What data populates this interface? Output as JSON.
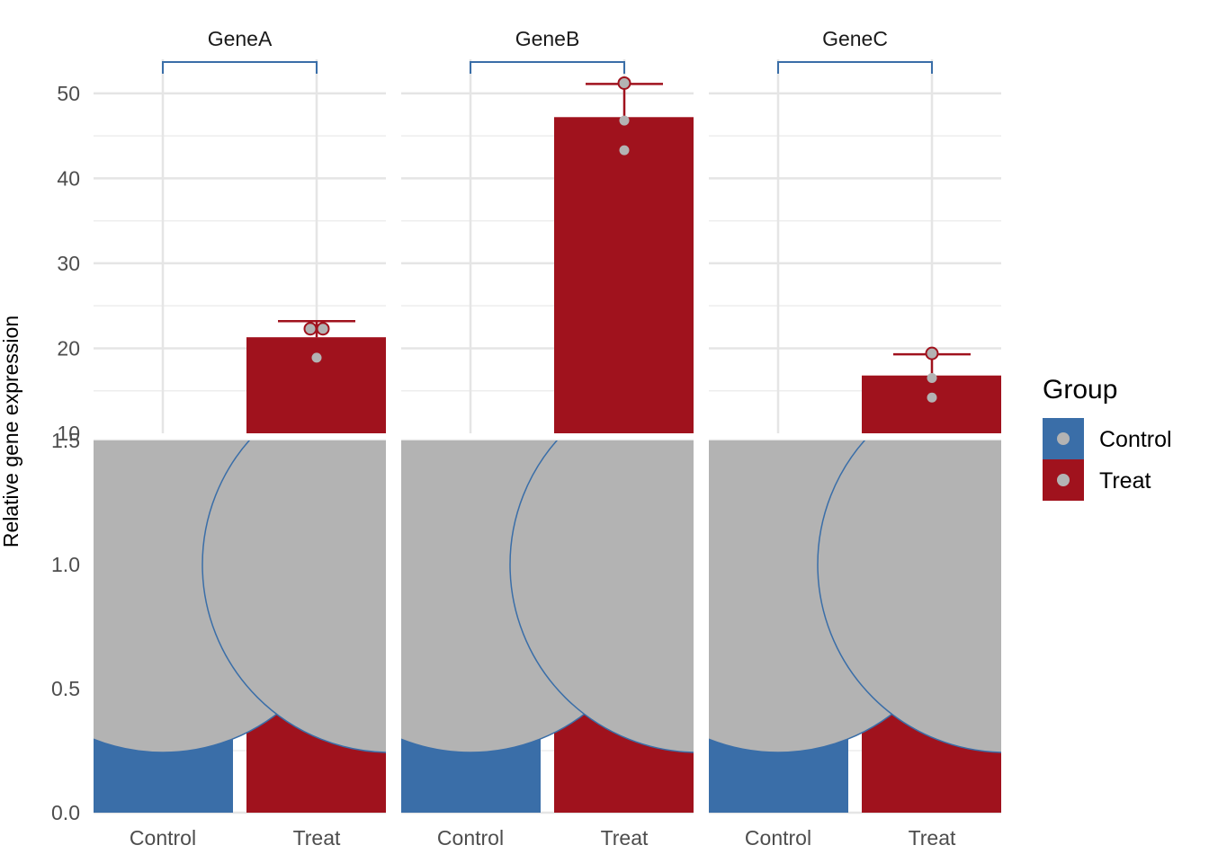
{
  "chart_data": {
    "type": "bar",
    "ylabel": "Relative gene expression",
    "xlabel": "",
    "categories": [
      "Control",
      "Treat"
    ],
    "facets": [
      {
        "name": "GeneA",
        "bars": [
          {
            "group": "Control",
            "value": 1.0
          },
          {
            "group": "Treat",
            "value": 21.3,
            "error_upper": 23.2
          }
        ],
        "points": [
          {
            "group": "Control",
            "values": [
              1.0,
              1.0,
              1.0
            ]
          },
          {
            "group": "Treat",
            "values": [
              22.3,
              22.3,
              18.9
            ]
          }
        ]
      },
      {
        "name": "GeneB",
        "bars": [
          {
            "group": "Control",
            "value": 1.0
          },
          {
            "group": "Treat",
            "value": 47.2,
            "error_upper": 51.1
          }
        ],
        "points": [
          {
            "group": "Control",
            "values": [
              1.0,
              1.0,
              1.0
            ]
          },
          {
            "group": "Treat",
            "values": [
              51.2,
              46.8,
              43.3
            ]
          }
        ]
      },
      {
        "name": "GeneC",
        "bars": [
          {
            "group": "Control",
            "value": 1.0
          },
          {
            "group": "Treat",
            "value": 16.8,
            "error_upper": 19.3
          }
        ],
        "points": [
          {
            "group": "Control",
            "values": [
              1.0,
              1.0,
              1.0
            ]
          },
          {
            "group": "Treat",
            "values": [
              19.4,
              16.5,
              14.2
            ]
          }
        ]
      }
    ],
    "upper_axis": {
      "ylim": [
        10,
        54
      ],
      "ticks": [
        10,
        20,
        30,
        40,
        50
      ]
    },
    "lower_axis": {
      "ylim": [
        0,
        1.5
      ],
      "ticks": [
        0.0,
        0.5,
        1.0,
        1.5
      ],
      "tick_labels": [
        "0.0",
        "0.5",
        "1.0",
        "1.5"
      ]
    },
    "legend": {
      "title": "Group",
      "position": "right",
      "entries": [
        {
          "label": "Control",
          "color": "#3a6ea8"
        },
        {
          "label": "Treat",
          "color": "#a0121d"
        }
      ]
    },
    "colors": {
      "Control": "#3a6ea8",
      "Treat": "#a0121d",
      "point_fill": "#b3b3b3",
      "grid": "#e5e5e5",
      "bracket": "#3a6ea8"
    },
    "grid": true
  }
}
